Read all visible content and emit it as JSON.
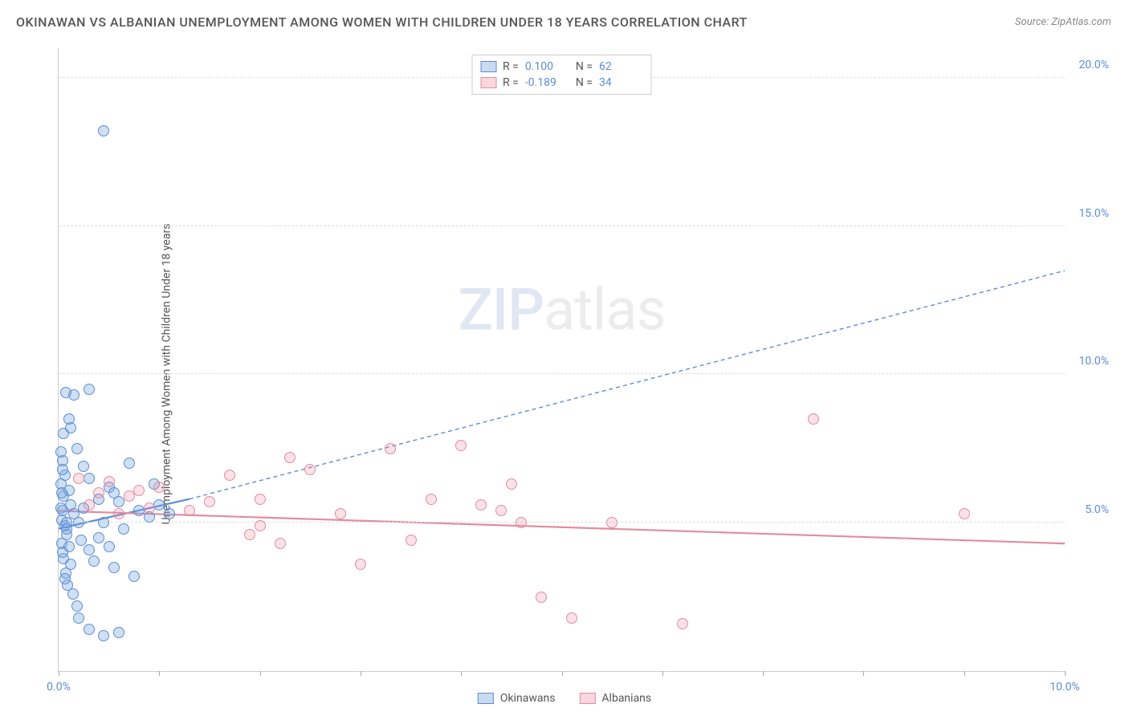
{
  "title": "OKINAWAN VS ALBANIAN UNEMPLOYMENT AMONG WOMEN WITH CHILDREN UNDER 18 YEARS CORRELATION CHART",
  "source": "Source: ZipAtlas.com",
  "ylabel": "Unemployment Among Women with Children Under 18 years",
  "watermark_a": "ZIP",
  "watermark_b": "atlas",
  "chart": {
    "type": "scatter",
    "xlim": [
      0,
      10
    ],
    "ylim": [
      0,
      21
    ],
    "ytick_values": [
      5,
      10,
      15,
      20
    ],
    "ytick_labels": [
      "5.0%",
      "10.0%",
      "15.0%",
      "20.0%"
    ],
    "xtick_values": [
      0,
      1,
      2,
      3,
      4,
      5,
      6,
      7,
      8,
      9,
      10
    ],
    "xtick_labels_shown": {
      "0": "0.0%",
      "10": "10.0%"
    },
    "background_color": "#ffffff",
    "grid_color": "#dddddd",
    "axis_color": "#cccccc",
    "colors": {
      "blue": "#5b8dd6",
      "pink": "#e48ba0"
    },
    "series": [
      {
        "name": "Okinawans",
        "color_key": "blue",
        "R": "0.100",
        "N": "62",
        "trend": {
          "x1": 0,
          "y1": 4.8,
          "x2_solid": 1.3,
          "y2_solid": 5.8,
          "x2": 10,
          "y2": 13.5
        },
        "points": [
          [
            0.02,
            6.3
          ],
          [
            0.05,
            5.9
          ],
          [
            0.03,
            5.1
          ],
          [
            0.08,
            4.6
          ],
          [
            0.04,
            5.4
          ],
          [
            0.1,
            6.1
          ],
          [
            0.06,
            4.9
          ],
          [
            0.12,
            5.6
          ],
          [
            0.07,
            9.4
          ],
          [
            0.15,
            9.3
          ],
          [
            0.1,
            8.5
          ],
          [
            0.04,
            7.1
          ],
          [
            0.06,
            6.6
          ],
          [
            0.08,
            5.0
          ],
          [
            0.03,
            4.3
          ],
          [
            0.05,
            3.8
          ],
          [
            0.07,
            3.3
          ],
          [
            0.09,
            2.9
          ],
          [
            0.14,
            2.6
          ],
          [
            0.18,
            2.2
          ],
          [
            0.2,
            1.8
          ],
          [
            0.3,
            1.4
          ],
          [
            0.45,
            1.2
          ],
          [
            0.6,
            1.3
          ],
          [
            0.1,
            4.2
          ],
          [
            0.12,
            3.6
          ],
          [
            0.08,
            4.8
          ],
          [
            0.15,
            5.3
          ],
          [
            0.2,
            5.0
          ],
          [
            0.25,
            5.5
          ],
          [
            0.22,
            4.4
          ],
          [
            0.3,
            4.1
          ],
          [
            0.35,
            3.7
          ],
          [
            0.4,
            5.8
          ],
          [
            0.05,
            8.0
          ],
          [
            0.02,
            7.4
          ],
          [
            0.04,
            6.8
          ],
          [
            0.3,
            9.5
          ],
          [
            0.5,
            6.2
          ],
          [
            0.55,
            6.0
          ],
          [
            0.6,
            5.7
          ],
          [
            0.7,
            7.0
          ],
          [
            0.8,
            5.4
          ],
          [
            0.9,
            5.2
          ],
          [
            0.95,
            6.3
          ],
          [
            1.0,
            5.6
          ],
          [
            1.1,
            5.3
          ],
          [
            0.4,
            4.5
          ],
          [
            0.45,
            5.0
          ],
          [
            0.5,
            4.2
          ],
          [
            0.55,
            3.5
          ],
          [
            0.65,
            4.8
          ],
          [
            0.75,
            3.2
          ],
          [
            0.3,
            6.5
          ],
          [
            0.25,
            6.9
          ],
          [
            0.18,
            7.5
          ],
          [
            0.12,
            8.2
          ],
          [
            0.45,
            18.2
          ],
          [
            0.02,
            5.5
          ],
          [
            0.03,
            6.0
          ],
          [
            0.04,
            4.0
          ],
          [
            0.06,
            3.1
          ]
        ]
      },
      {
        "name": "Albanians",
        "color_key": "pink",
        "R": "-0.189",
        "N": "34",
        "trend": {
          "x1": 0,
          "y1": 5.4,
          "x2_solid": 10,
          "y2_solid": 4.3,
          "x2": 10,
          "y2": 4.3
        },
        "points": [
          [
            0.2,
            6.5
          ],
          [
            0.3,
            5.6
          ],
          [
            0.4,
            6.0
          ],
          [
            0.5,
            6.4
          ],
          [
            0.6,
            5.3
          ],
          [
            0.7,
            5.9
          ],
          [
            0.8,
            6.1
          ],
          [
            0.9,
            5.5
          ],
          [
            1.0,
            6.2
          ],
          [
            1.3,
            5.4
          ],
          [
            1.5,
            5.7
          ],
          [
            1.7,
            6.6
          ],
          [
            1.9,
            4.6
          ],
          [
            2.0,
            5.8
          ],
          [
            2.2,
            4.3
          ],
          [
            2.3,
            7.2
          ],
          [
            2.5,
            6.8
          ],
          [
            2.8,
            5.3
          ],
          [
            3.0,
            3.6
          ],
          [
            3.3,
            7.5
          ],
          [
            3.5,
            4.4
          ],
          [
            3.7,
            5.8
          ],
          [
            4.0,
            7.6
          ],
          [
            4.2,
            5.6
          ],
          [
            4.4,
            5.4
          ],
          [
            4.5,
            6.3
          ],
          [
            4.6,
            5.0
          ],
          [
            4.8,
            2.5
          ],
          [
            5.1,
            1.8
          ],
          [
            5.5,
            5.0
          ],
          [
            6.2,
            1.6
          ],
          [
            7.5,
            8.5
          ],
          [
            9.0,
            5.3
          ],
          [
            2.0,
            4.9
          ]
        ]
      }
    ]
  },
  "legend_bottom": [
    {
      "label": "Okinawans",
      "color_key": "blue"
    },
    {
      "label": "Albanians",
      "color_key": "pink"
    }
  ]
}
